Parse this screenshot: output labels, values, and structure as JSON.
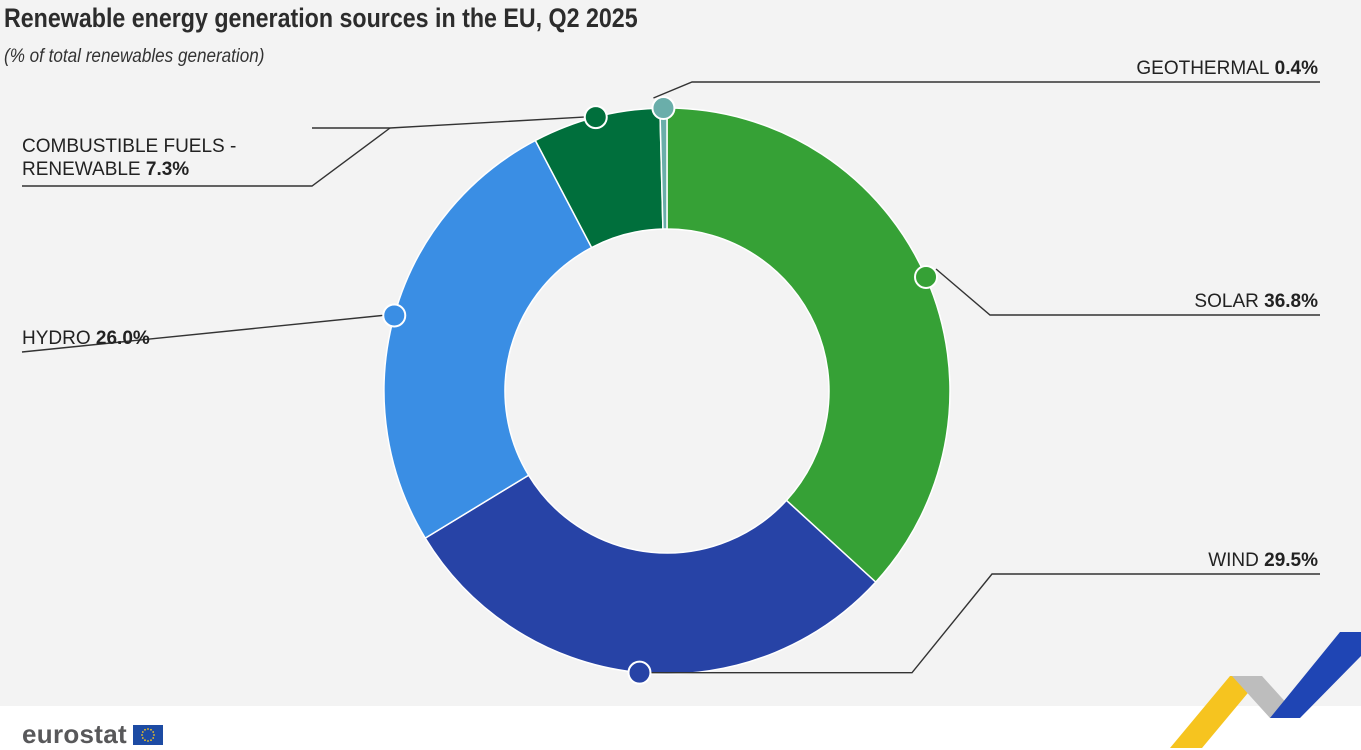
{
  "chart_data": {
    "type": "pie",
    "title": "Renewable energy generation sources in the EU, Q2 2025",
    "subtitle": "(% of total renewables generation)",
    "unit": "%",
    "slices": [
      {
        "label": "SOLAR",
        "value": 36.8,
        "value_text": "36.8%",
        "color": "#36a136"
      },
      {
        "label": "WIND",
        "value": 29.5,
        "value_text": "29.5%",
        "color": "#2743a6"
      },
      {
        "label": "HYDRO",
        "value": 26.0,
        "value_text": "26.0%",
        "color": "#3a8ee4"
      },
      {
        "label": "COMBUSTIBLE FUELS - RENEWABLE",
        "label_lines": [
          "COMBUSTIBLE FUELS -",
          "RENEWABLE"
        ],
        "value": 7.3,
        "value_text": "7.3%",
        "color": "#006f3c"
      },
      {
        "label": "GEOTHERMAL",
        "value": 0.4,
        "value_text": "0.4%",
        "color": "#6aaeaa"
      }
    ],
    "legend": "none"
  },
  "footer": {
    "brand": "eurostat"
  },
  "colors": {
    "background": "#f3f3f3",
    "accent_yellow": "#f6c41f",
    "accent_grey": "#b9b9b9",
    "accent_blue": "#1f45b4"
  }
}
